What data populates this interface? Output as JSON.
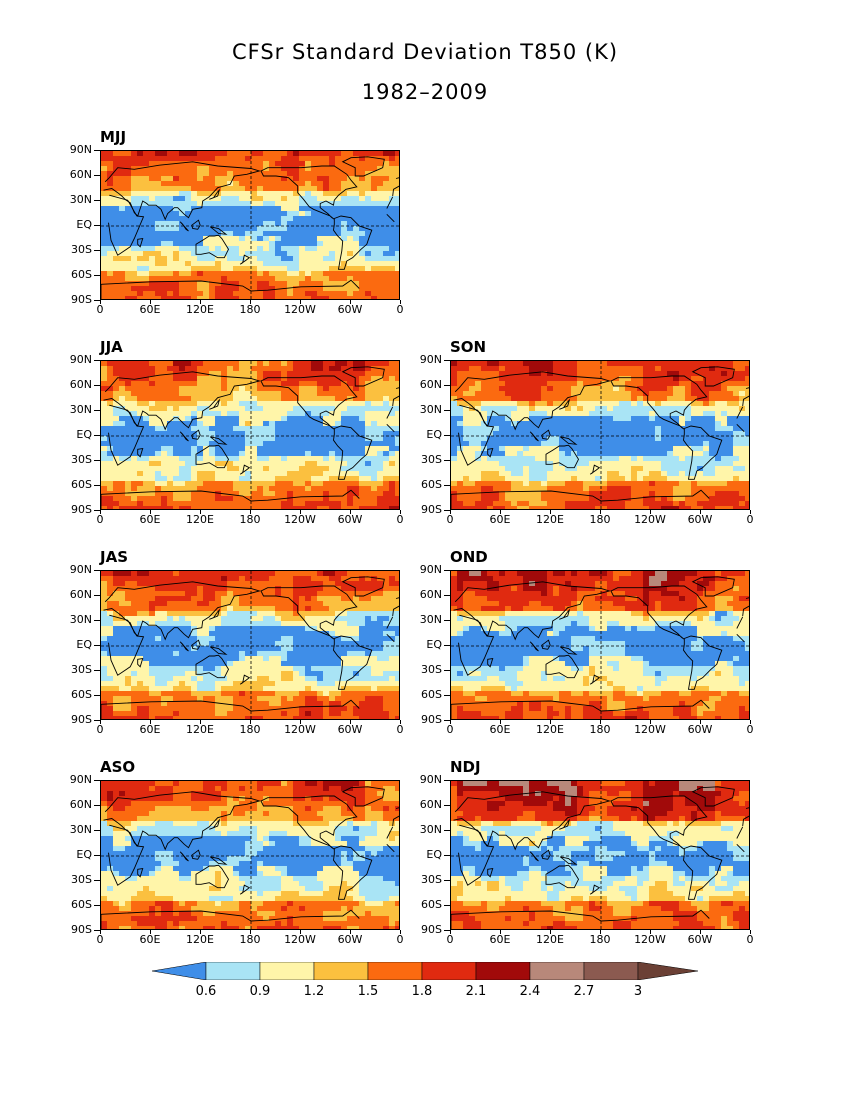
{
  "title": "CFSr Standard Deviation T850 (K)",
  "subtitle": "1982–2009",
  "panels": [
    {
      "label": "MJJ",
      "col": 0,
      "row": 0,
      "intensity": 0.35
    },
    {
      "label": "JJA",
      "col": 0,
      "row": 1,
      "intensity": 0.35
    },
    {
      "label": "SON",
      "col": 1,
      "row": 1,
      "intensity": 0.45
    },
    {
      "label": "JAS",
      "col": 0,
      "row": 2,
      "intensity": 0.38
    },
    {
      "label": "OND",
      "col": 1,
      "row": 2,
      "intensity": 0.6
    },
    {
      "label": "ASO",
      "col": 0,
      "row": 3,
      "intensity": 0.38
    },
    {
      "label": "NDJ",
      "col": 1,
      "row": 3,
      "intensity": 0.7
    }
  ],
  "lat_labels": [
    "90N",
    "60N",
    "30N",
    "EQ",
    "30S",
    "60S",
    "90S"
  ],
  "lon_labels": [
    "0",
    "60E",
    "120E",
    "180",
    "120W",
    "60W",
    "0"
  ],
  "colorbar": {
    "labels": [
      "0.6",
      "0.9",
      "1.2",
      "1.5",
      "1.8",
      "2.1",
      "2.4",
      "2.7",
      "3"
    ],
    "colors": [
      "#3f8ee8",
      "#a9e4f5",
      "#fff5a9",
      "#fbc03f",
      "#fb6a10",
      "#e02a10",
      "#a10a0a",
      "#b8887a",
      "#8b5a50",
      "#6b4035"
    ]
  },
  "chart_data": {
    "type": "heatmap",
    "title": "CFSr Standard Deviation T850 (K)",
    "subtitle": "1982–2009",
    "panels": [
      "MJJ",
      "JJA",
      "SON",
      "JAS",
      "OND",
      "ASO",
      "NDJ"
    ],
    "x_ticks": [
      "0",
      "60E",
      "120E",
      "180",
      "120W",
      "60W",
      "0"
    ],
    "y_ticks": [
      "90N",
      "60N",
      "30N",
      "EQ",
      "30S",
      "60S",
      "90S"
    ],
    "contour_levels": [
      0.6,
      0.9,
      1.2,
      1.5,
      1.8,
      2.1,
      2.4,
      2.7,
      3
    ],
    "units": "K"
  }
}
